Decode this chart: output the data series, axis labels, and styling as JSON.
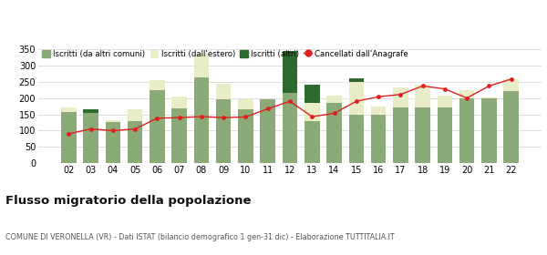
{
  "years": [
    "02",
    "03",
    "04",
    "05",
    "06",
    "07",
    "08",
    "09",
    "10",
    "11",
    "12",
    "13",
    "14",
    "15",
    "16",
    "17",
    "18",
    "19",
    "20",
    "21",
    "22"
  ],
  "iscritti_comuni": [
    158,
    155,
    125,
    128,
    225,
    168,
    262,
    195,
    165,
    195,
    215,
    130,
    185,
    150,
    148,
    170,
    172,
    170,
    198,
    200,
    220
  ],
  "iscritti_estero": [
    14,
    0,
    7,
    38,
    31,
    37,
    73,
    48,
    31,
    1,
    0,
    56,
    23,
    98,
    27,
    63,
    70,
    37,
    27,
    2,
    38
  ],
  "iscritti_altri": [
    0,
    10,
    0,
    0,
    0,
    0,
    0,
    0,
    0,
    0,
    130,
    55,
    0,
    12,
    0,
    0,
    0,
    0,
    0,
    0,
    0
  ],
  "cancellati": [
    90,
    105,
    100,
    105,
    138,
    140,
    143,
    140,
    142,
    167,
    190,
    143,
    153,
    190,
    204,
    211,
    237,
    228,
    200,
    237,
    258
  ],
  "color_comuni": "#8aaa78",
  "color_estero": "#e8edc8",
  "color_altri": "#2d6a2d",
  "color_cancellati": "#e02020",
  "title": "Flusso migratorio della popolazione",
  "subtitle": "COMUNE DI VERONELLA (VR) - Dati ISTAT (bilancio demografico 1 gen-31 dic) - Elaborazione TUTTITALIA.IT",
  "legend_labels": [
    "Iscritti (da altri comuni)",
    "Iscritti (dall'estero)",
    "Iscritti (altri)",
    "Cancellati dall'Anagrafe"
  ],
  "ylim": [
    0,
    360
  ],
  "yticks": [
    0,
    50,
    100,
    150,
    200,
    250,
    300,
    350
  ],
  "bg_color": "#ffffff",
  "grid_color": "#d8d8d8"
}
